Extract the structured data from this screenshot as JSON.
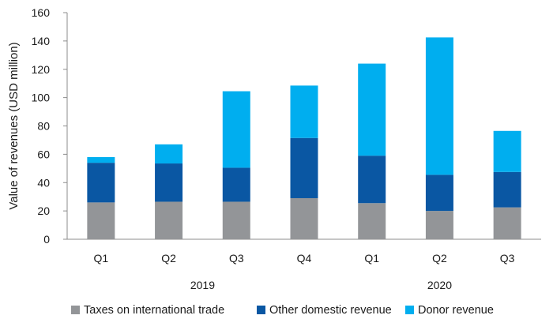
{
  "chart_data": {
    "type": "bar",
    "stacked": true,
    "categories": [
      "Q1",
      "Q2",
      "Q3",
      "Q4",
      "Q1",
      "Q2",
      "Q3"
    ],
    "year_groups": [
      {
        "label": "2019",
        "categories": [
          "Q1",
          "Q2",
          "Q3",
          "Q4"
        ]
      },
      {
        "label": "2020",
        "categories": [
          "Q1",
          "Q2",
          "Q3"
        ]
      }
    ],
    "series": [
      {
        "name": "Taxes on international trade",
        "color": "#939598",
        "values": [
          26,
          26.5,
          26.5,
          29,
          25.5,
          20,
          22.5
        ]
      },
      {
        "name": "Other domestic revenue",
        "color": "#0a57a3",
        "values": [
          28,
          27,
          24,
          42.5,
          33.5,
          25.5,
          25
        ]
      },
      {
        "name": "Donor revenue",
        "color": "#00aeef",
        "values": [
          4,
          13.5,
          54,
          37,
          65,
          97,
          29
        ]
      }
    ],
    "title": "",
    "xlabel": "",
    "ylabel": "Value of revenues (USD million)",
    "ylim": [
      0,
      160
    ],
    "yticks": [
      0,
      20,
      40,
      60,
      80,
      100,
      120,
      140,
      160
    ],
    "grid": false,
    "legend_position": "bottom"
  }
}
